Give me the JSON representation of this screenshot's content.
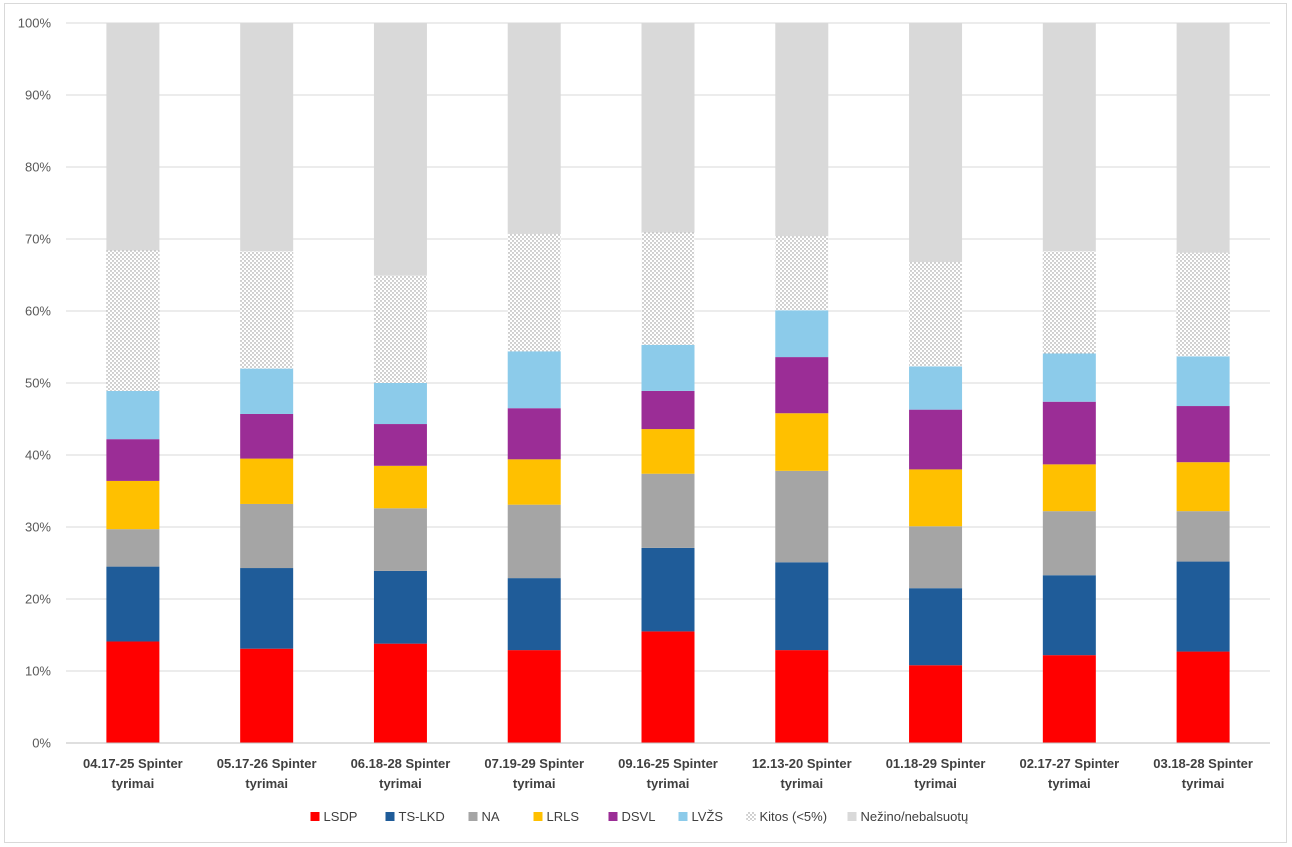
{
  "chart_data": {
    "type": "bar",
    "stacked": true,
    "title": "",
    "xlabel": "",
    "ylabel": "",
    "ylim": [
      0,
      100
    ],
    "yticks": [
      "0%",
      "10%",
      "20%",
      "30%",
      "40%",
      "50%",
      "60%",
      "70%",
      "80%",
      "90%",
      "100%"
    ],
    "grid": true,
    "legend_position": "bottom",
    "categories": [
      [
        "04.17-25 Spinter",
        "tyrimai"
      ],
      [
        "05.17-26 Spinter",
        "tyrimai"
      ],
      [
        "06.18-28 Spinter",
        "tyrimai"
      ],
      [
        "07.19-29 Spinter",
        "tyrimai"
      ],
      [
        "09.16-25 Spinter",
        "tyrimai"
      ],
      [
        "12.13-20 Spinter",
        "tyrimai"
      ],
      [
        "01.18-29 Spinter",
        "tyrimai"
      ],
      [
        "02.17-27 Spinter",
        "tyrimai"
      ],
      [
        "03.18-28 Spinter",
        "tyrimai"
      ]
    ],
    "series": [
      {
        "name": "LSDP",
        "color": "#ff0000",
        "values": [
          14.1,
          13.1,
          13.8,
          12.9,
          15.5,
          12.9,
          10.8,
          12.2,
          12.7
        ]
      },
      {
        "name": "TS-LKD",
        "color": "#1f5c99",
        "values": [
          10.4,
          11.2,
          10.1,
          10.0,
          11.6,
          12.2,
          10.7,
          11.1,
          12.5
        ]
      },
      {
        "name": "NA",
        "color": "#a5a5a5",
        "values": [
          5.2,
          8.9,
          8.7,
          10.2,
          10.3,
          12.7,
          8.6,
          8.9,
          7.0
        ]
      },
      {
        "name": "LRLS",
        "color": "#ffc000",
        "values": [
          6.7,
          6.3,
          5.9,
          6.3,
          6.2,
          8.0,
          7.9,
          6.5,
          6.8
        ]
      },
      {
        "name": "DSVL",
        "color": "#9b2d96",
        "values": [
          5.8,
          6.2,
          5.8,
          7.1,
          5.3,
          7.8,
          8.3,
          8.7,
          7.8
        ]
      },
      {
        "name": "LVŽS",
        "color": "#8ccbea",
        "values": [
          6.7,
          6.3,
          5.7,
          7.9,
          6.4,
          6.5,
          6.0,
          6.7,
          6.9
        ]
      },
      {
        "name": "Kitos (<5%)",
        "color": "#dddddd",
        "pattern": "dots",
        "values": [
          19.5,
          16.3,
          14.9,
          16.3,
          15.6,
          10.3,
          14.5,
          14.2,
          14.4
        ]
      },
      {
        "name": "Nežino/nebalsuotų",
        "color": "#d9d9d9",
        "values": [
          31.6,
          31.7,
          35.1,
          29.3,
          29.1,
          29.6,
          33.2,
          31.7,
          31.9
        ]
      }
    ]
  }
}
